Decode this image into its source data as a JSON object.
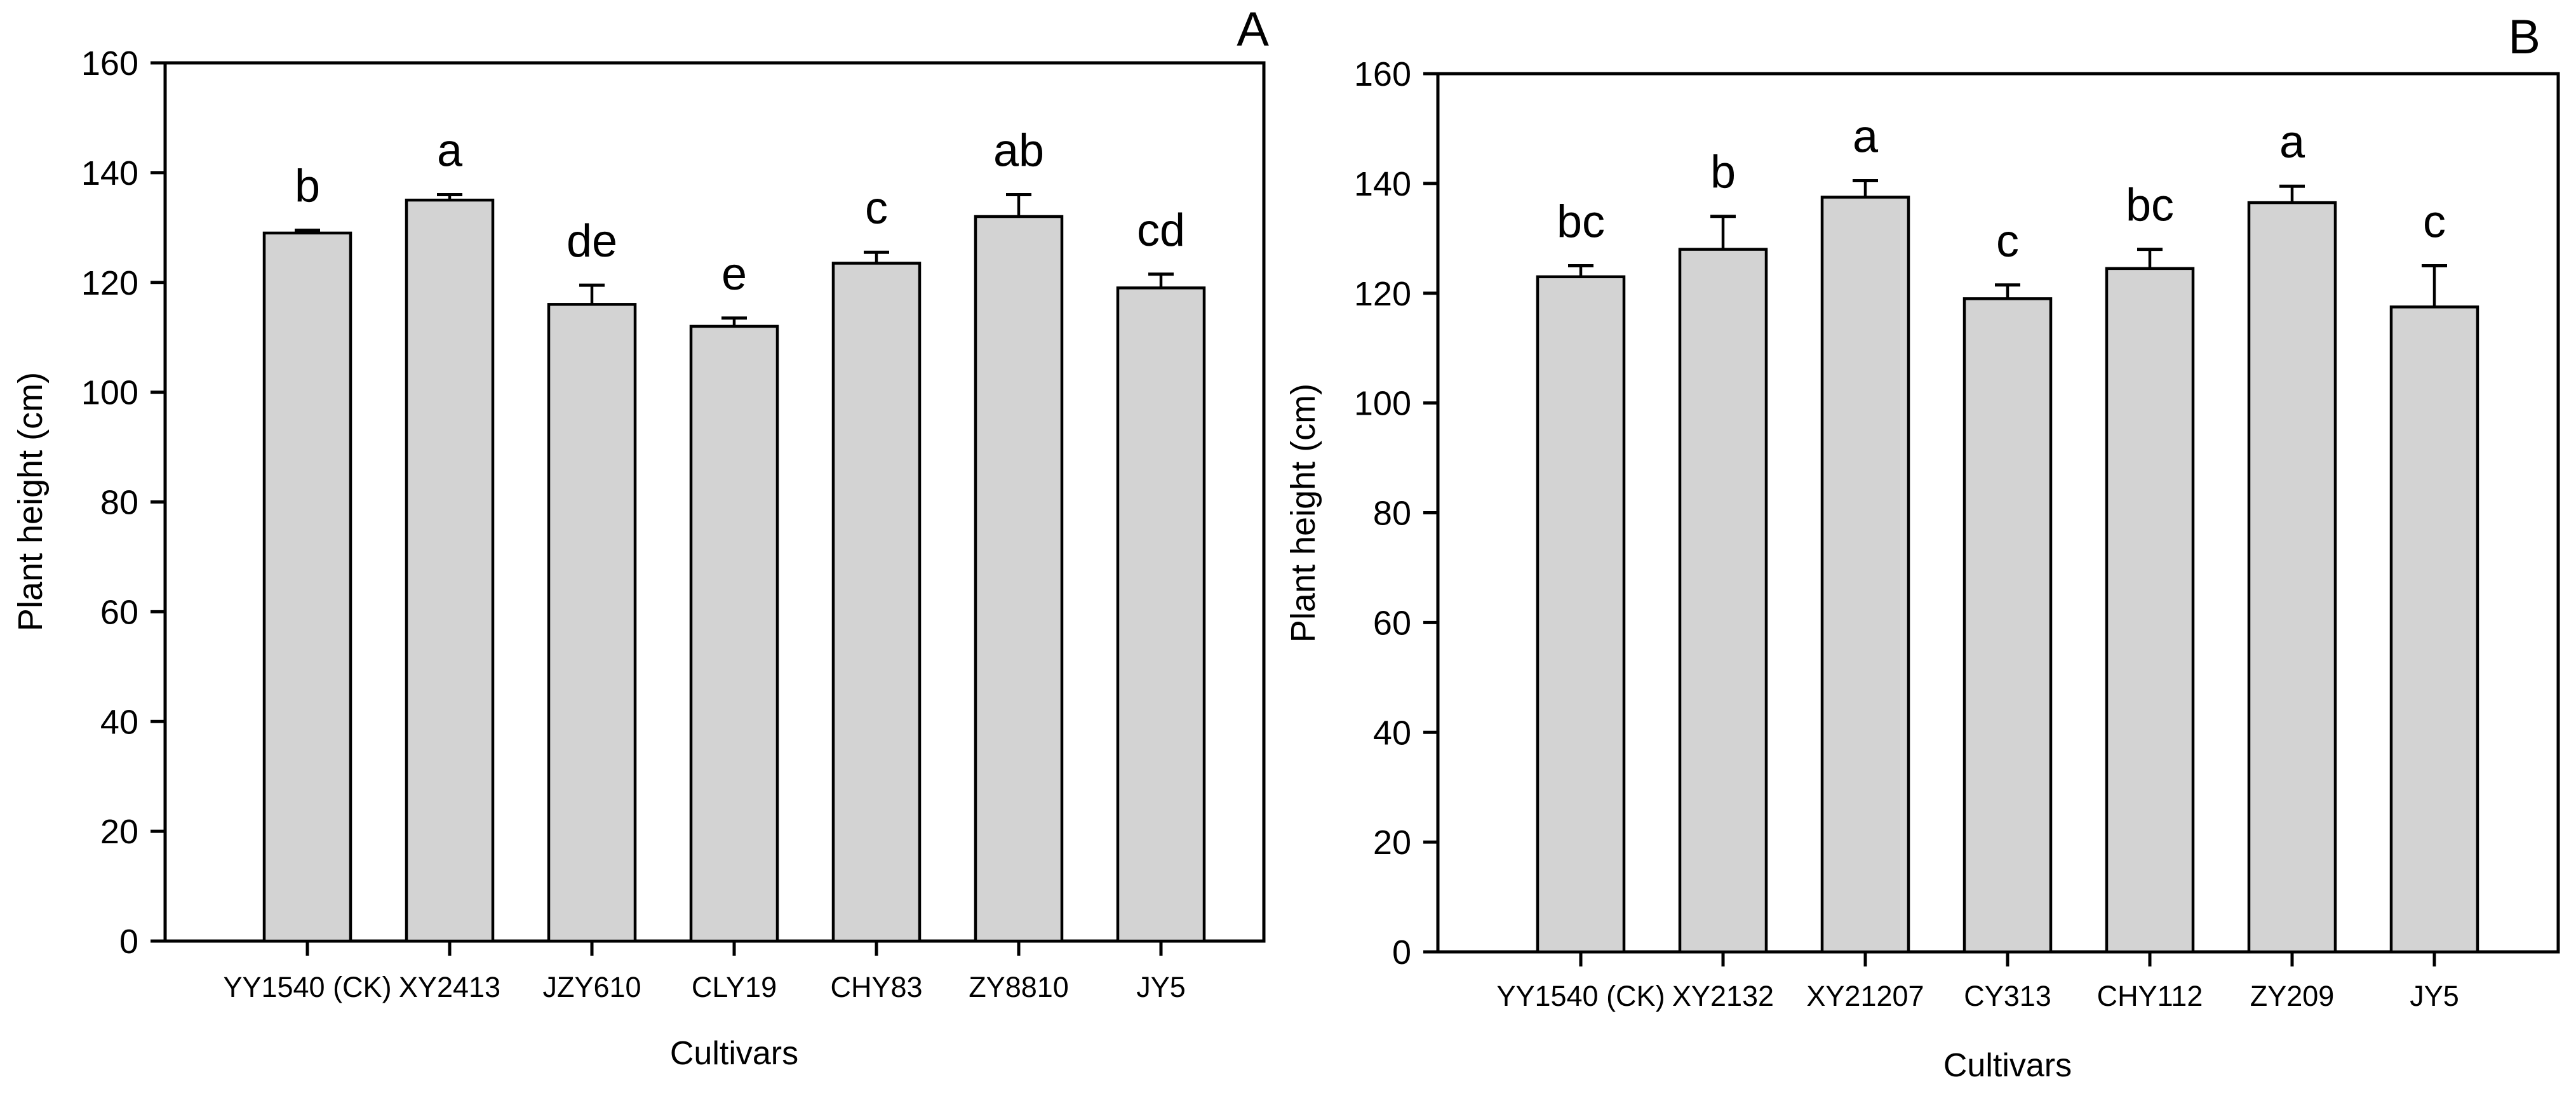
{
  "figure": {
    "background": "#ffffff",
    "line_color": "#000000",
    "bar_fill": "#d3d3d3"
  },
  "chart_data": [
    {
      "type": "bar",
      "panel_label": "A",
      "title": "",
      "xlabel": "Cultivars",
      "ylabel": "Plant height (cm)",
      "ylim": [
        0,
        160
      ],
      "yticks": [
        0,
        20,
        40,
        60,
        80,
        100,
        120,
        140,
        160
      ],
      "grid": false,
      "legend": "none",
      "error_bars": "upper",
      "bar_color": "#d3d3d3",
      "categories": [
        "YY1540 (CK)",
        "XY2413",
        "JZY610",
        "CLY19",
        "CHY83",
        "ZY8810",
        "JY5"
      ],
      "values": [
        129,
        135,
        116,
        112,
        123.5,
        132,
        119
      ],
      "errors": [
        0.5,
        1,
        3.5,
        1.5,
        2,
        4,
        2.5
      ],
      "sig_letters": [
        "b",
        "a",
        "de",
        "e",
        "c",
        "ab",
        "cd"
      ]
    },
    {
      "type": "bar",
      "panel_label": "B",
      "title": "",
      "xlabel": "Cultivars",
      "ylabel": "Plant height (cm)",
      "ylim": [
        0,
        160
      ],
      "yticks": [
        0,
        20,
        40,
        60,
        80,
        100,
        120,
        140,
        160
      ],
      "grid": false,
      "legend": "none",
      "error_bars": "upper",
      "bar_color": "#d3d3d3",
      "categories": [
        "YY1540 (CK)",
        "XY2132",
        "XY21207",
        "CY313",
        "CHY112",
        "ZY209",
        "JY5"
      ],
      "values": [
        123,
        128,
        137.5,
        119,
        124.5,
        136.5,
        117.5
      ],
      "errors": [
        2,
        6,
        3,
        2.5,
        3.5,
        3,
        7.5
      ],
      "sig_letters": [
        "bc",
        "b",
        "a",
        "c",
        "bc",
        "a",
        "c"
      ]
    }
  ]
}
